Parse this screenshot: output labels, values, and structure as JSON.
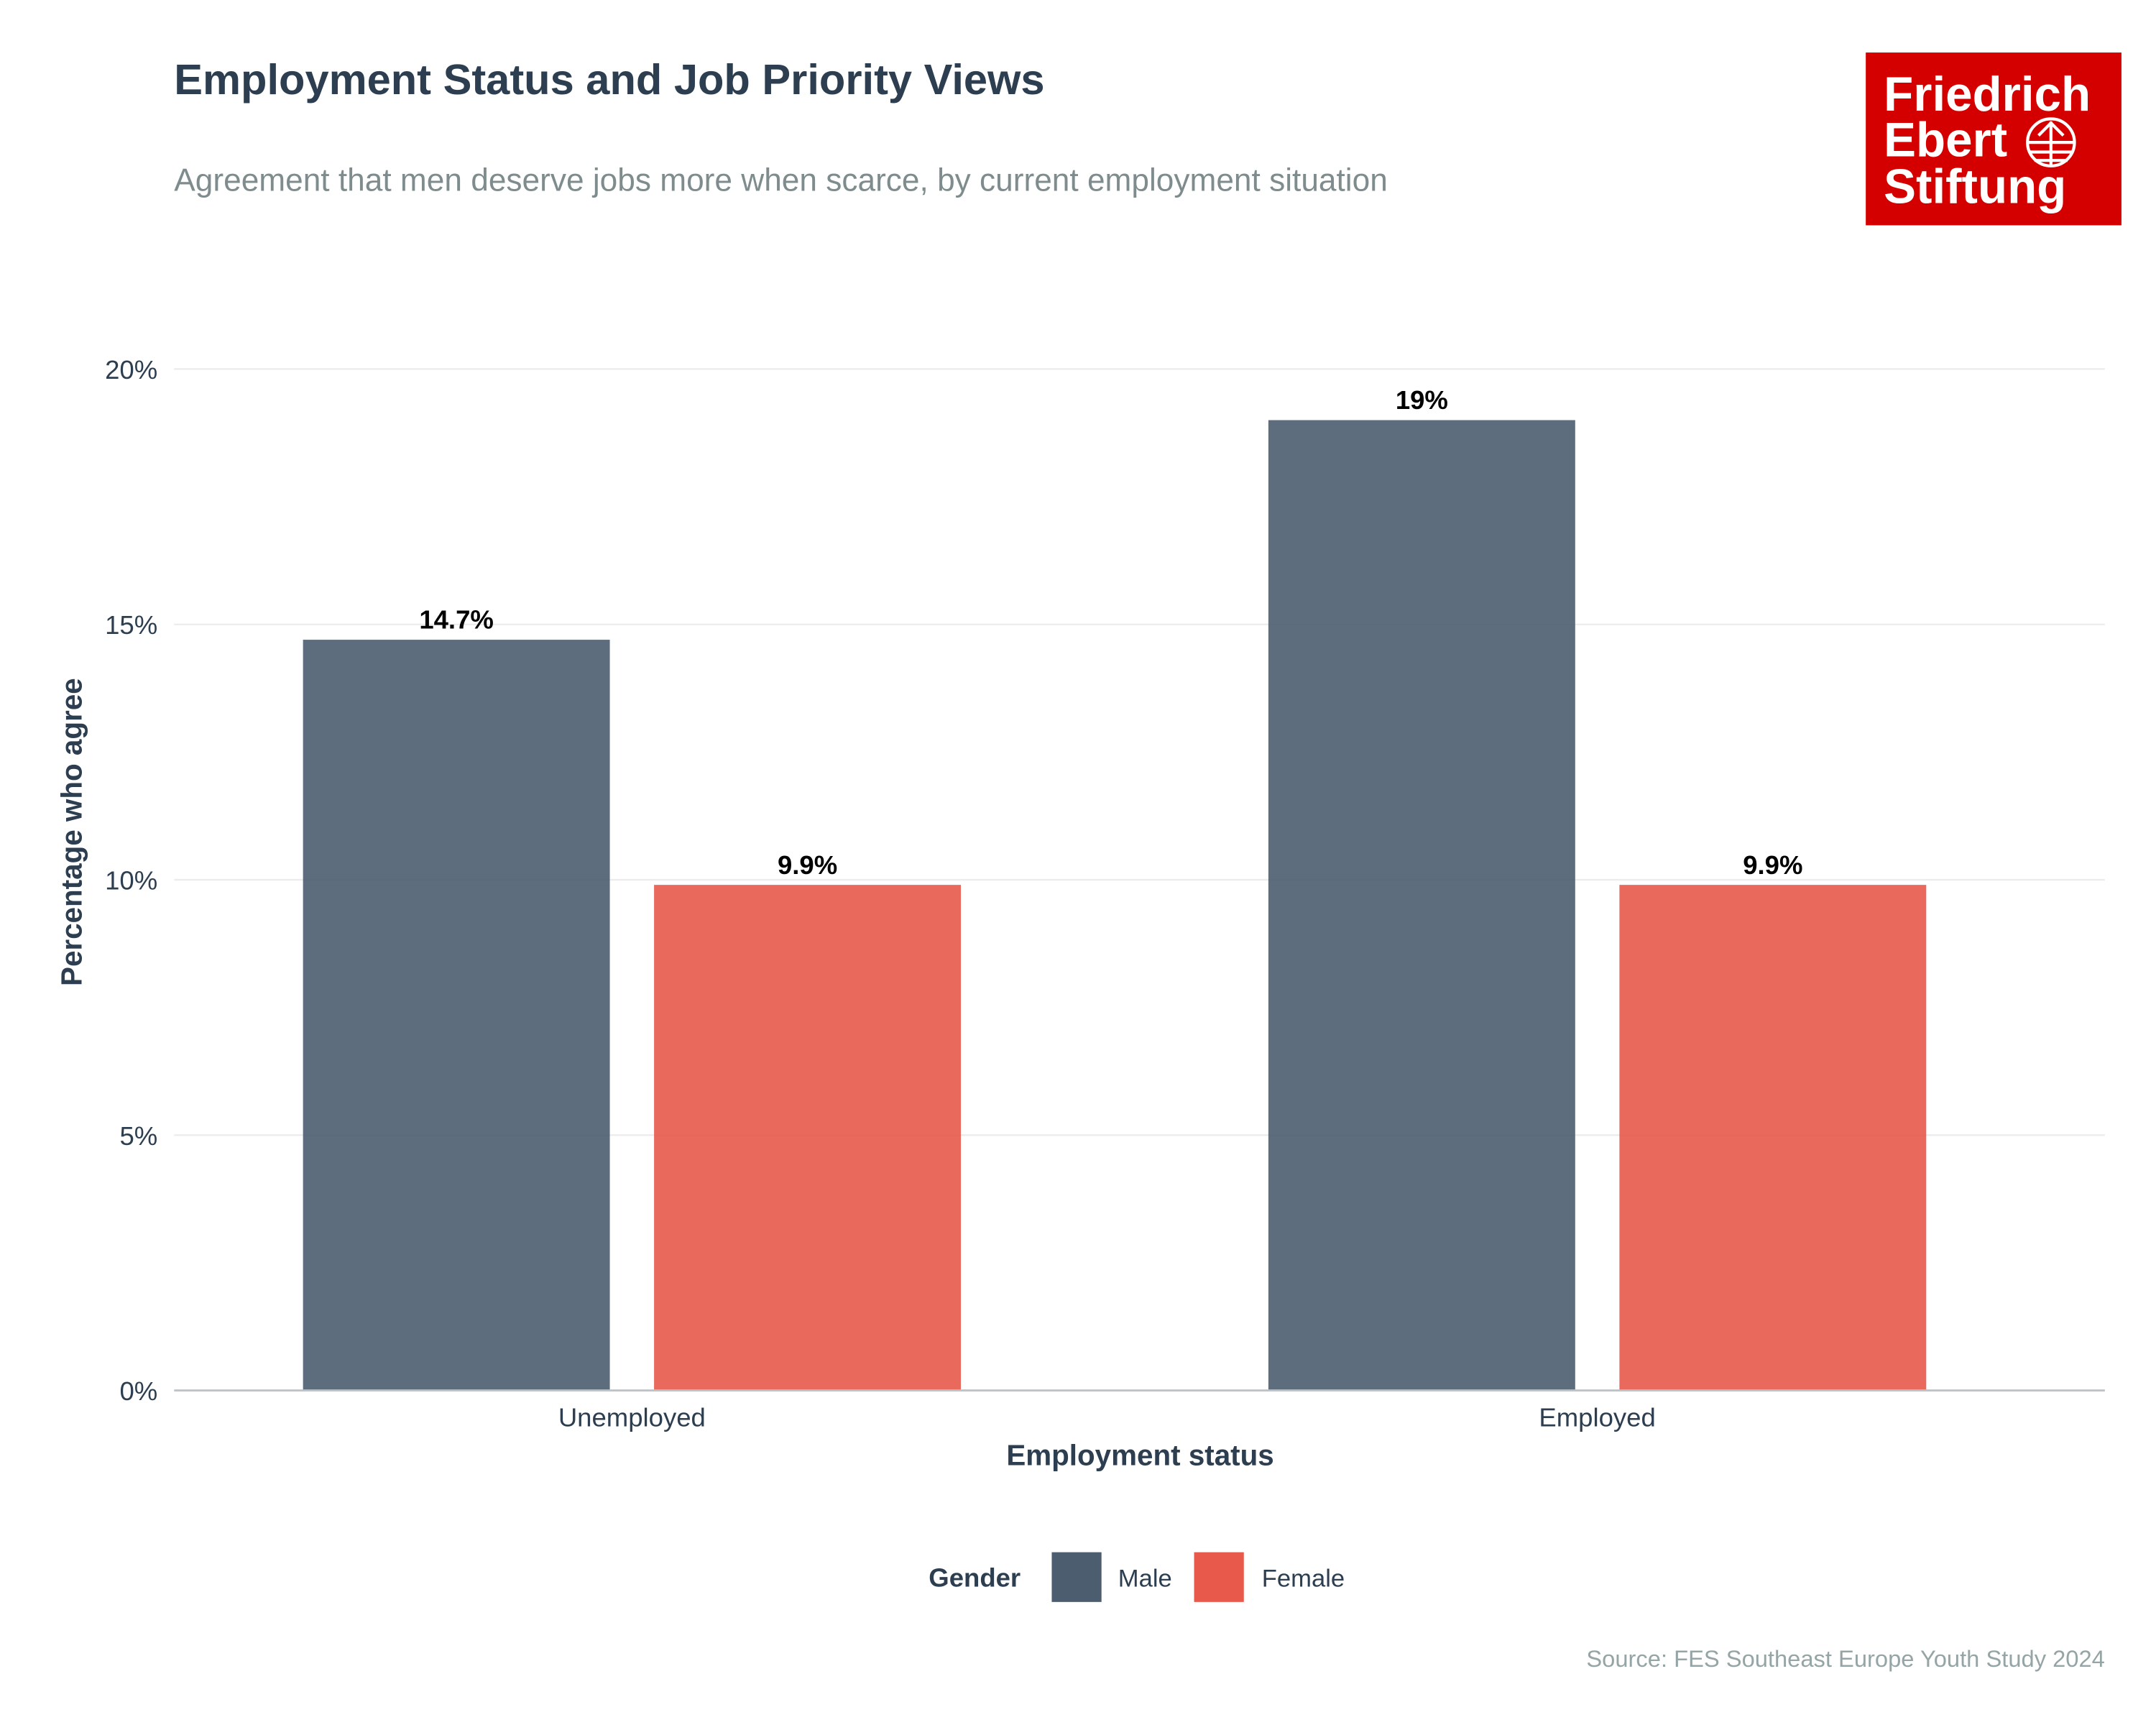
{
  "chart_data": {
    "type": "bar",
    "title": "Employment Status and Job Priority Views",
    "subtitle": "Agreement that men deserve jobs more when scarce, by current employment situation",
    "xlabel": "Employment status",
    "ylabel": "Percentage who agree",
    "categories": [
      "Unemployed",
      "Employed"
    ],
    "series": [
      {
        "name": "Male",
        "color": "#4d5d70",
        "values": [
          14.7,
          19.0
        ],
        "labels": [
          "14.7%",
          "19%"
        ]
      },
      {
        "name": "Female",
        "color": "#e8594b",
        "values": [
          9.9,
          9.9
        ],
        "labels": [
          "9.9%",
          "9.9%"
        ]
      }
    ],
    "ylim": [
      0,
      20
    ],
    "yticks": [
      0,
      5,
      10,
      15,
      20
    ],
    "ytick_labels": [
      "0%",
      "5%",
      "10%",
      "15%",
      "20%"
    ],
    "grid": true,
    "legend": {
      "title": "Gender",
      "placement": "bottom"
    },
    "source": "Source: FES Southeast Europe Youth Study 2024",
    "logo": {
      "text": [
        "Friedrich",
        "Ebert",
        "Stiftung"
      ],
      "color": "#d40000"
    }
  }
}
